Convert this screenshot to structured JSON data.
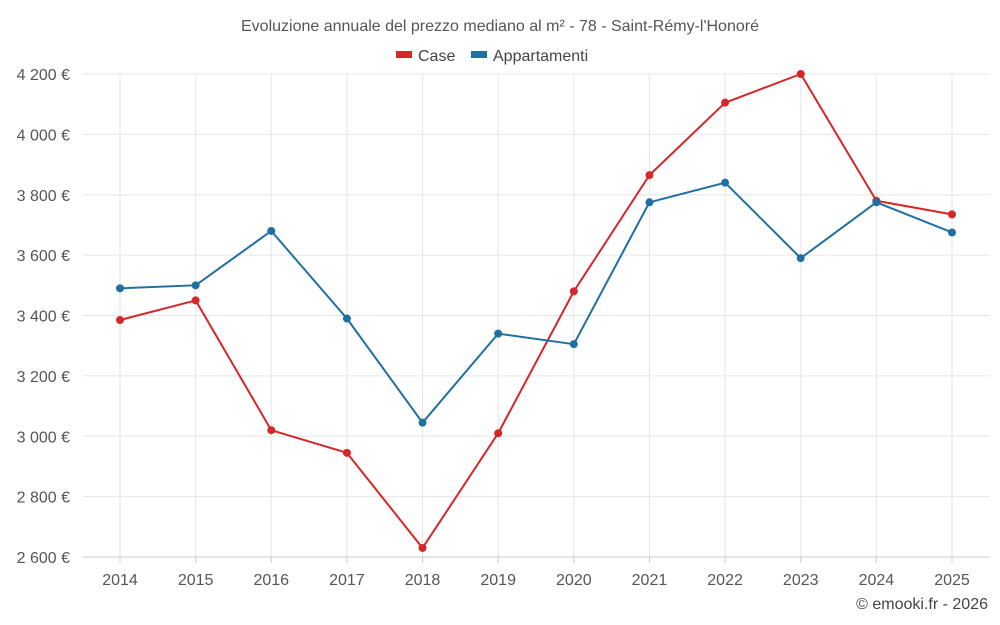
{
  "chart_data": {
    "type": "line",
    "title": "Evoluzione annuale del prezzo mediano al m² - 78 - Saint-Rémy-l'Honoré",
    "categories": [
      "2014",
      "2015",
      "2016",
      "2017",
      "2018",
      "2019",
      "2020",
      "2021",
      "2022",
      "2023",
      "2024",
      "2025"
    ],
    "series": [
      {
        "name": "Case",
        "color": "#d62728",
        "values": [
          3385,
          3450,
          3020,
          2945,
          2630,
          3010,
          3480,
          3865,
          4105,
          4200,
          3780,
          3735
        ]
      },
      {
        "name": "Appartamenti",
        "color": "#1f6fa3",
        "values": [
          3490,
          3500,
          3680,
          3390,
          3045,
          3340,
          3305,
          3775,
          3840,
          3590,
          3775,
          3675
        ]
      }
    ],
    "ylim": [
      2600,
      4200
    ],
    "yticks": [
      2600,
      2800,
      3000,
      3200,
      3400,
      3600,
      3800,
      4000,
      4200
    ],
    "ytick_labels": [
      "2 600 €",
      "2 800 €",
      "3 000 €",
      "3 200 €",
      "3 400 €",
      "3 600 €",
      "3 800 €",
      "4 000 €",
      "4 200 €"
    ],
    "xlabel": "",
    "ylabel": "",
    "grid": true,
    "legend_position": "top-center"
  },
  "credit": "© emooki.fr - 2026"
}
